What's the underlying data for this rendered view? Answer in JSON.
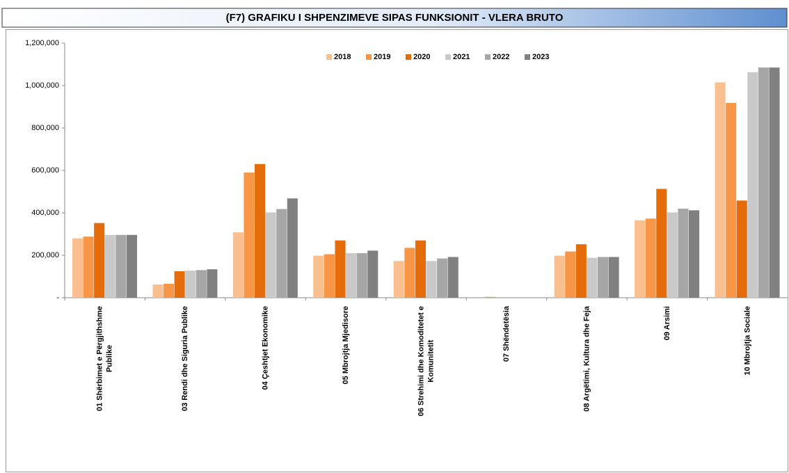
{
  "chart_data": {
    "type": "bar",
    "title": "(F7) GRAFIKU I SHPENZIMEVE SIPAS FUNKSIONIT - VLERA BRUTO",
    "categories": [
      "01 Shërbimet e Përgjithshme Publike",
      "03 Rendi dhe Siguria Publike",
      "04 Çeshtjet Ekonomike",
      "05 Mbrojtja Mjedisore",
      "06 Strehimi dhe Komoditetet e Komunitetit",
      "07 Shëndetësia",
      "08 Argëtimi, Kultura dhe Feja",
      "09 Arsimi",
      "10 Mbrojtja Sociale"
    ],
    "series": [
      {
        "name": "2018",
        "color": "#fabf8f",
        "values": [
          280000,
          62000,
          308000,
          198000,
          173000,
          0,
          198000,
          365000,
          1015000
        ]
      },
      {
        "name": "2019",
        "color": "#f79646",
        "values": [
          288000,
          66000,
          590000,
          205000,
          235000,
          4000,
          218000,
          373000,
          918000
        ]
      },
      {
        "name": "2020",
        "color": "#e46c0a",
        "values": [
          352000,
          125000,
          630000,
          270000,
          270000,
          0,
          252000,
          513000,
          458000
        ]
      },
      {
        "name": "2021",
        "color": "#c9c9c9",
        "values": [
          296000,
          128000,
          402000,
          210000,
          173000,
          0,
          188000,
          402000,
          1063000
        ]
      },
      {
        "name": "2022",
        "color": "#a6a6a6",
        "values": [
          296000,
          130000,
          418000,
          210000,
          185000,
          0,
          192000,
          420000,
          1085000
        ]
      },
      {
        "name": "2023",
        "color": "#808080",
        "values": [
          296000,
          134000,
          468000,
          222000,
          192000,
          0,
          192000,
          412000,
          1085000
        ]
      }
    ],
    "ylim": [
      0,
      1200000
    ],
    "yticks": [
      {
        "value": 0,
        "label": "-"
      },
      {
        "value": 200000,
        "label": "200,000"
      },
      {
        "value": 400000,
        "label": "400,000"
      },
      {
        "value": 600000,
        "label": "600,000"
      },
      {
        "value": 800000,
        "label": "800,000"
      },
      {
        "value": 1000000,
        "label": "1,000,000"
      },
      {
        "value": 1200000,
        "label": "1,200,000"
      }
    ],
    "legend": "top"
  }
}
